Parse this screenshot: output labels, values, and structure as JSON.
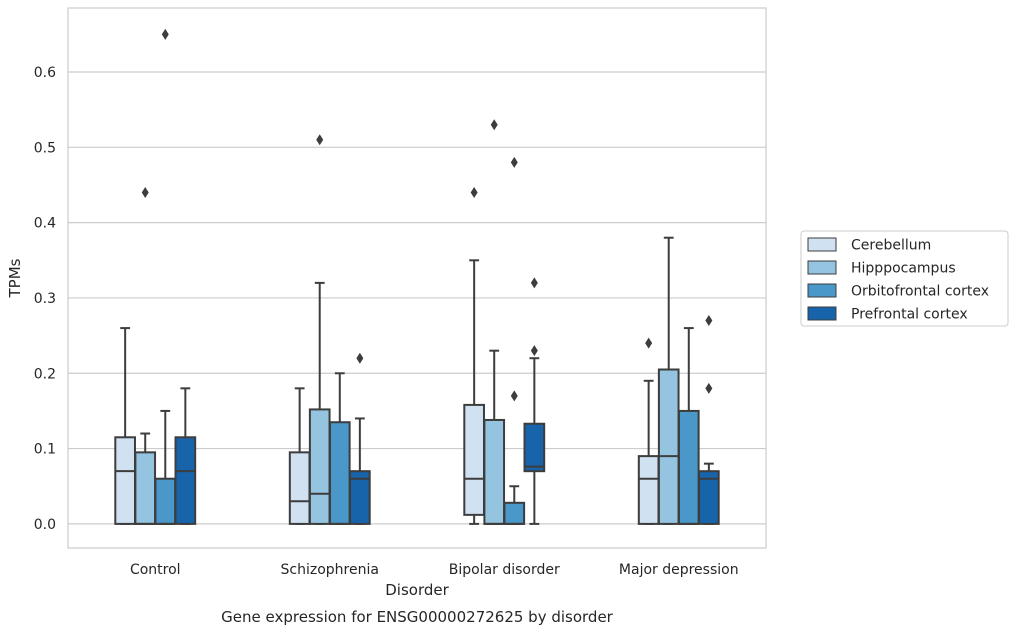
{
  "chart_data": {
    "type": "box",
    "title": "",
    "caption": "Gene expression for ENSG00000272625 by disorder",
    "xlabel": "Disorder",
    "ylabel": "TPMs",
    "ylim": [
      -0.032,
      0.685
    ],
    "yticks": [
      0.0,
      0.1,
      0.2,
      0.3,
      0.4,
      0.5,
      0.6
    ],
    "ytick_labels": [
      "0.0",
      "0.1",
      "0.2",
      "0.3",
      "0.4",
      "0.5",
      "0.6"
    ],
    "grid": "horizontal",
    "legend_position": "right",
    "categories": [
      "Control",
      "Schizophrenia",
      "Bipolar disorder",
      "Major depression"
    ],
    "series": [
      {
        "name": "Cerebellum",
        "color": "#d0e1f2",
        "boxes": [
          {
            "whislo": 0.0,
            "q1": 0.0,
            "med": 0.07,
            "q3": 0.115,
            "whishi": 0.26,
            "fliers": []
          },
          {
            "whislo": 0.0,
            "q1": 0.0,
            "med": 0.03,
            "q3": 0.095,
            "whishi": 0.18,
            "fliers": []
          },
          {
            "whislo": 0.0,
            "q1": 0.012,
            "med": 0.06,
            "q3": 0.158,
            "whishi": 0.35,
            "fliers": [
              0.44
            ]
          },
          {
            "whislo": 0.0,
            "q1": 0.0,
            "med": 0.06,
            "q3": 0.09,
            "whishi": 0.19,
            "fliers": [
              0.24
            ]
          }
        ]
      },
      {
        "name": "Hipppocampus",
        "color": "#94c4df",
        "boxes": [
          {
            "whislo": 0.0,
            "q1": 0.0,
            "med": 0.0,
            "q3": 0.095,
            "whishi": 0.12,
            "fliers": [
              0.44
            ]
          },
          {
            "whislo": 0.0,
            "q1": 0.0,
            "med": 0.04,
            "q3": 0.152,
            "whishi": 0.32,
            "fliers": [
              0.51
            ]
          },
          {
            "whislo": 0.0,
            "q1": 0.0,
            "med": 0.0,
            "q3": 0.138,
            "whishi": 0.23,
            "fliers": [
              0.53
            ]
          },
          {
            "whislo": 0.0,
            "q1": 0.0,
            "med": 0.09,
            "q3": 0.205,
            "whishi": 0.38,
            "fliers": []
          }
        ]
      },
      {
        "name": "Orbitofrontal cortex",
        "color": "#4a98c9",
        "boxes": [
          {
            "whislo": 0.0,
            "q1": 0.0,
            "med": 0.0,
            "q3": 0.06,
            "whishi": 0.15,
            "fliers": [
              0.65
            ]
          },
          {
            "whislo": 0.0,
            "q1": 0.0,
            "med": 0.0,
            "q3": 0.135,
            "whishi": 0.2,
            "fliers": []
          },
          {
            "whislo": 0.0,
            "q1": 0.0,
            "med": 0.0,
            "q3": 0.028,
            "whishi": 0.05,
            "fliers": [
              0.17,
              0.48
            ]
          },
          {
            "whislo": 0.0,
            "q1": 0.0,
            "med": 0.0,
            "q3": 0.15,
            "whishi": 0.26,
            "fliers": []
          }
        ]
      },
      {
        "name": "Prefrontal cortex",
        "color": "#1764ab",
        "boxes": [
          {
            "whislo": 0.0,
            "q1": 0.0,
            "med": 0.07,
            "q3": 0.115,
            "whishi": 0.18,
            "fliers": []
          },
          {
            "whislo": 0.0,
            "q1": 0.0,
            "med": 0.06,
            "q3": 0.07,
            "whishi": 0.14,
            "fliers": [
              0.22
            ]
          },
          {
            "whislo": 0.0,
            "q1": 0.07,
            "med": 0.076,
            "q3": 0.133,
            "whishi": 0.22,
            "fliers": [
              0.23,
              0.32
            ]
          },
          {
            "whislo": 0.0,
            "q1": 0.0,
            "med": 0.06,
            "q3": 0.07,
            "whishi": 0.08,
            "fliers": [
              0.18,
              0.27
            ]
          }
        ]
      }
    ]
  },
  "colors": {
    "box_edge": "#3d3d3d",
    "grid": "#cccccc",
    "spine": "#cccccc",
    "text": "#262626"
  }
}
